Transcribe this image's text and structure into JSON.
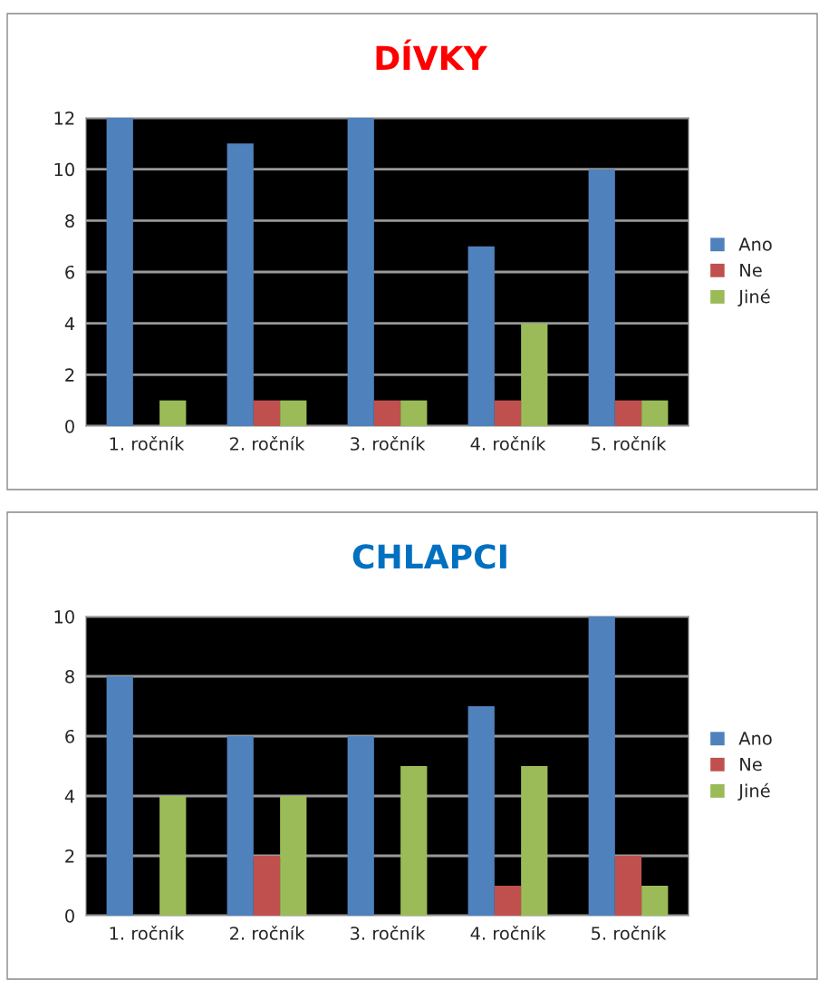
{
  "chart_data": [
    {
      "type": "bar",
      "title": "DÍVKY",
      "categories": [
        "1. ročník",
        "2. ročník",
        "3. ročník",
        "4. ročník",
        "5. ročník"
      ],
      "series": [
        {
          "name": "Ano",
          "color": "#4f81bd",
          "values": [
            12,
            11,
            12,
            7,
            10
          ]
        },
        {
          "name": "Ne",
          "color": "#c0504d",
          "values": [
            0,
            1,
            1,
            1,
            1
          ]
        },
        {
          "name": "Jiné",
          "color": "#9bbb59",
          "values": [
            1,
            1,
            1,
            4,
            1
          ]
        }
      ],
      "ylim": [
        0,
        12
      ],
      "yticks": [
        0,
        2,
        4,
        6,
        8,
        10,
        12
      ],
      "grid": "y",
      "legend": "right"
    },
    {
      "type": "bar",
      "title": "CHLAPCI",
      "categories": [
        "1. ročník",
        "2. ročník",
        "3. ročník",
        "4. ročník",
        "5. ročník"
      ],
      "series": [
        {
          "name": "Ano",
          "color": "#4f81bd",
          "values": [
            8,
            6,
            6,
            7,
            10
          ]
        },
        {
          "name": "Ne",
          "color": "#c0504d",
          "values": [
            0,
            2,
            0,
            1,
            2
          ]
        },
        {
          "name": "Jiné",
          "color": "#9bbb59",
          "values": [
            4,
            4,
            5,
            5,
            1
          ]
        }
      ],
      "ylim": [
        0,
        10
      ],
      "yticks": [
        0,
        2,
        4,
        6,
        8,
        10
      ],
      "grid": "y",
      "legend": "right"
    }
  ]
}
